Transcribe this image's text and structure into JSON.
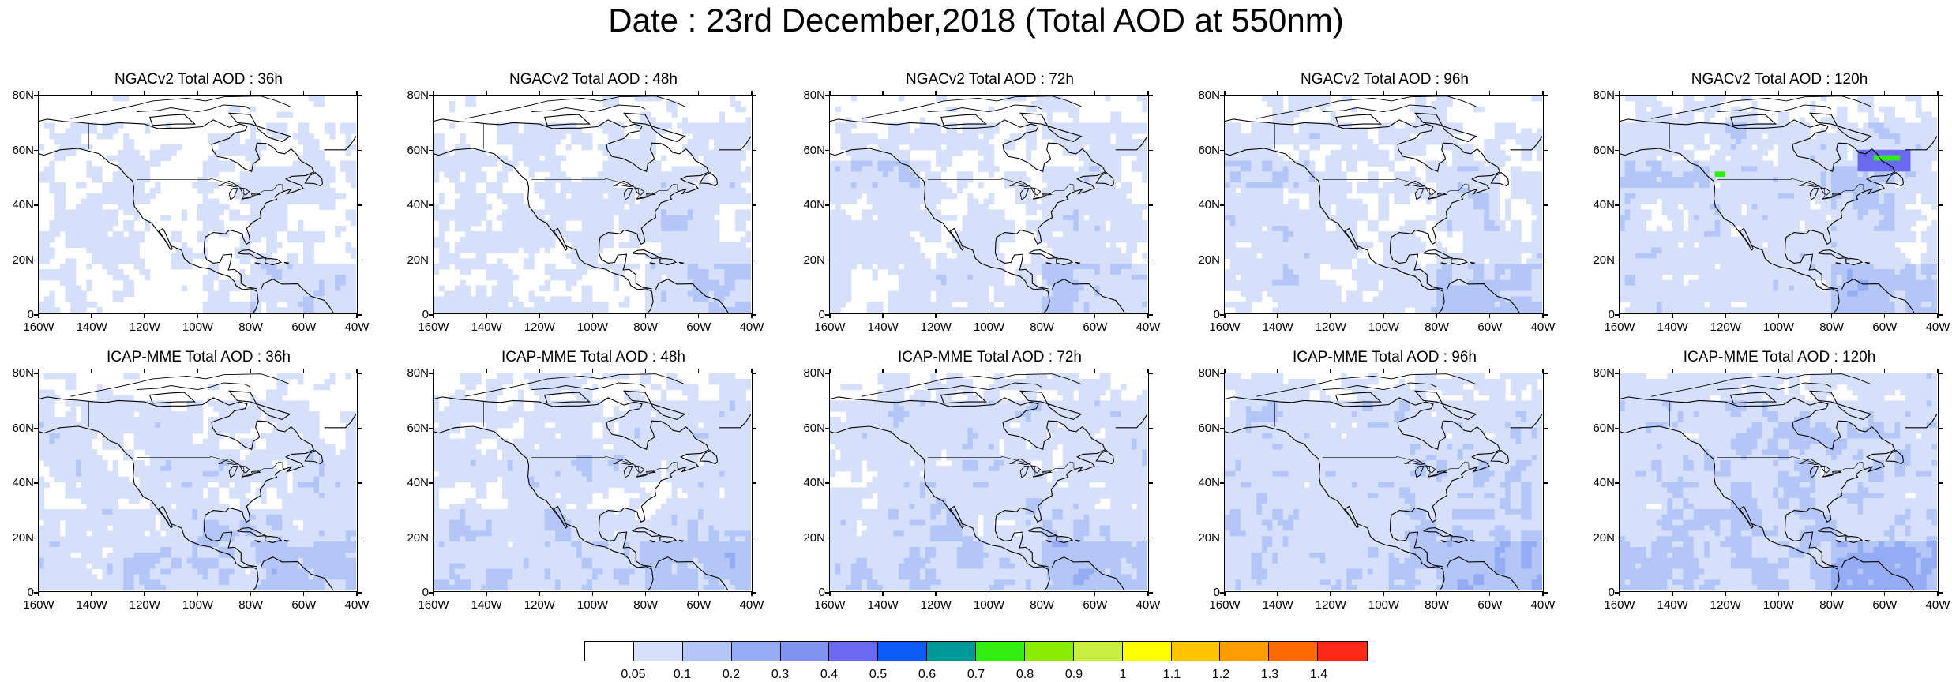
{
  "title": "Date : 23rd December,2018 (Total AOD at 550nm)",
  "rows": [
    {
      "model": "NGACv2",
      "panels": [
        {
          "title": "NGACv2 Total AOD : 36h",
          "hour": "36h"
        },
        {
          "title": "NGACv2 Total AOD : 48h",
          "hour": "48h"
        },
        {
          "title": "NGACv2 Total AOD : 72h",
          "hour": "72h"
        },
        {
          "title": "NGACv2 Total AOD : 96h",
          "hour": "96h"
        },
        {
          "title": "NGACv2 Total AOD : 120h",
          "hour": "120h"
        }
      ]
    },
    {
      "model": "ICAP-MME",
      "panels": [
        {
          "title": "ICAP-MME Total AOD : 36h",
          "hour": "36h"
        },
        {
          "title": "ICAP-MME Total AOD : 48h",
          "hour": "48h"
        },
        {
          "title": "ICAP-MME Total AOD : 72h",
          "hour": "72h"
        },
        {
          "title": "ICAP-MME Total AOD : 96h",
          "hour": "96h"
        },
        {
          "title": "ICAP-MME Total AOD : 120h",
          "hour": "120h"
        }
      ]
    }
  ],
  "axes": {
    "y_ticks": [
      "80N",
      "60N",
      "40N",
      "20N",
      "0"
    ],
    "x_ticks": [
      "160W",
      "140W",
      "120W",
      "100W",
      "80W",
      "60W",
      "40W"
    ],
    "lat_range": [
      0,
      80
    ],
    "lon_range": [
      -160,
      -40
    ]
  },
  "colorbar": {
    "labels": [
      "0.05",
      "0.1",
      "0.2",
      "0.3",
      "0.4",
      "0.5",
      "0.6",
      "0.7",
      "0.8",
      "0.9",
      "1",
      "1.1",
      "1.2",
      "1.3",
      "1.4"
    ],
    "colors": [
      "#ffffff",
      "#d6e0fb",
      "#b4c6f7",
      "#94acf3",
      "#8194f0",
      "#6a6af0",
      "#0a5cf5",
      "#009999",
      "#33ee11",
      "#88ee00",
      "#c8f040",
      "#ffff00",
      "#ffc400",
      "#ff9d00",
      "#ff6a00",
      "#ff2a1a"
    ]
  }
}
